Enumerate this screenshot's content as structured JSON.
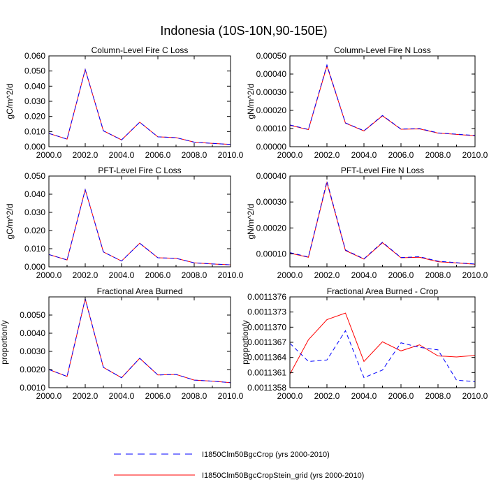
{
  "figure": {
    "title": "Indonesia (10S-10N,90-150E)"
  },
  "legend": [
    {
      "label": "I1850Clm50BgcCrop (yrs 2000-2010)",
      "color": "#0000ff",
      "style": "dashed"
    },
    {
      "label": "I1850Clm50BgcCropStein_grid (yrs 2000-2010)",
      "color": "#ff0000",
      "style": "solid"
    }
  ],
  "chart_data": [
    {
      "type": "line",
      "title": "Column-Level Fire C Loss",
      "xlabel": "",
      "ylabel": "gC/m^2/d",
      "x": [
        2000,
        2001,
        2002,
        2003,
        2004,
        2005,
        2006,
        2007,
        2008,
        2009,
        2010
      ],
      "xlim": [
        2000,
        2010
      ],
      "ylim": [
        0,
        0.06
      ],
      "xticks": [
        "2000.0",
        "2002.0",
        "2004.0",
        "2006.0",
        "2008.0",
        "2010.0"
      ],
      "xtick_values": [
        2000,
        2002,
        2004,
        2006,
        2008,
        2010
      ],
      "yticks": [
        "0.000",
        "0.010",
        "0.020",
        "0.030",
        "0.040",
        "0.050",
        "0.060"
      ],
      "ytick_values": [
        0,
        0.01,
        0.02,
        0.03,
        0.04,
        0.05,
        0.06
      ],
      "series": [
        {
          "values": [
            0.0088,
            0.005,
            0.051,
            0.0105,
            0.0045,
            0.0162,
            0.0065,
            0.006,
            0.003,
            0.0022,
            0.0015
          ],
          "color": "#ff0000",
          "style": "solid"
        },
        {
          "values": [
            0.0088,
            0.005,
            0.051,
            0.0105,
            0.0045,
            0.0162,
            0.0065,
            0.006,
            0.003,
            0.0022,
            0.0015
          ],
          "color": "#0000ff",
          "style": "dashed"
        }
      ]
    },
    {
      "type": "line",
      "title": "Column-Level Fire N Loss",
      "xlabel": "",
      "ylabel": "gN/m^2/d",
      "x": [
        2000,
        2001,
        2002,
        2003,
        2004,
        2005,
        2006,
        2007,
        2008,
        2009,
        2010
      ],
      "xlim": [
        2000,
        2010
      ],
      "ylim": [
        0,
        0.0005
      ],
      "xticks": [
        "2000.0",
        "2002.0",
        "2004.0",
        "2006.0",
        "2008.0",
        "2010.0"
      ],
      "xtick_values": [
        2000,
        2002,
        2004,
        2006,
        2008,
        2010
      ],
      "yticks": [
        "0.00000",
        "0.00010",
        "0.00020",
        "0.00030",
        "0.00040",
        "0.00050"
      ],
      "ytick_values": [
        0,
        0.0001,
        0.0002,
        0.0003,
        0.0004,
        0.0005
      ],
      "series": [
        {
          "values": [
            0.000118,
            9.4e-05,
            0.000445,
            0.00013,
            8.7e-05,
            0.00017,
            9.6e-05,
            9.8e-05,
            7.5e-05,
            6.8e-05,
            6e-05
          ],
          "color": "#ff0000",
          "style": "solid"
        },
        {
          "values": [
            0.00012,
            9.5e-05,
            0.00045,
            0.000131,
            8.8e-05,
            0.000172,
            9.7e-05,
            0.0001,
            7.6e-05,
            6.9e-05,
            6.2e-05
          ],
          "color": "#0000ff",
          "style": "dashed"
        }
      ]
    },
    {
      "type": "line",
      "title": "PFT-Level Fire C Loss",
      "xlabel": "",
      "ylabel": "gC/m^2/d",
      "x": [
        2000,
        2001,
        2002,
        2003,
        2004,
        2005,
        2006,
        2007,
        2008,
        2009,
        2010
      ],
      "xlim": [
        2000,
        2010
      ],
      "ylim": [
        0,
        0.05
      ],
      "xticks": [
        "2000.0",
        "2002.0",
        "2004.0",
        "2006.0",
        "2008.0",
        "2010.0"
      ],
      "xtick_values": [
        2000,
        2002,
        2004,
        2006,
        2008,
        2010
      ],
      "yticks": [
        "0.000",
        "0.010",
        "0.020",
        "0.030",
        "0.040",
        "0.050"
      ],
      "ytick_values": [
        0,
        0.01,
        0.02,
        0.03,
        0.04,
        0.05
      ],
      "series": [
        {
          "values": [
            0.0068,
            0.0038,
            0.0425,
            0.0082,
            0.0032,
            0.013,
            0.005,
            0.0047,
            0.0022,
            0.0016,
            0.0011
          ],
          "color": "#ff0000",
          "style": "solid"
        },
        {
          "values": [
            0.0068,
            0.0038,
            0.0425,
            0.0082,
            0.0032,
            0.013,
            0.005,
            0.0047,
            0.0022,
            0.0016,
            0.0011
          ],
          "color": "#0000ff",
          "style": "dashed"
        }
      ]
    },
    {
      "type": "line",
      "title": "PFT-Level Fire N Loss",
      "xlabel": "",
      "ylabel": "gN/m^2/d",
      "x": [
        2000,
        2001,
        2002,
        2003,
        2004,
        2005,
        2006,
        2007,
        2008,
        2009,
        2010
      ],
      "xlim": [
        2000,
        2010
      ],
      "ylim": [
        5e-05,
        0.0004
      ],
      "xticks": [
        "2000.0",
        "2002.0",
        "2004.0",
        "2006.0",
        "2008.0",
        "2010.0"
      ],
      "xtick_values": [
        2000,
        2002,
        2004,
        2006,
        2008,
        2010
      ],
      "yticks": [
        "0.00010",
        "0.00020",
        "0.00030",
        "0.00040"
      ],
      "ytick_values": [
        0.0001,
        0.0002,
        0.0003,
        0.0004
      ],
      "series": [
        {
          "values": [
            0.000103,
            8.7e-05,
            0.000375,
            0.000113,
            8e-05,
            0.000143,
            8.5e-05,
            8.7e-05,
            7e-05,
            6.5e-05,
            6e-05
          ],
          "color": "#ff0000",
          "style": "solid"
        },
        {
          "values": [
            0.000105,
            8.8e-05,
            0.00038,
            0.000115,
            8.1e-05,
            0.000145,
            8.6e-05,
            8.9e-05,
            7.2e-05,
            6.6e-05,
            6.1e-05
          ],
          "color": "#0000ff",
          "style": "dashed"
        }
      ]
    },
    {
      "type": "line",
      "title": "Fractional Area Burned",
      "xlabel": "",
      "ylabel": "proportion/y",
      "x": [
        2000,
        2001,
        2002,
        2003,
        2004,
        2005,
        2006,
        2007,
        2008,
        2009,
        2010
      ],
      "xlim": [
        2000,
        2010
      ],
      "ylim": [
        0.001,
        0.006
      ],
      "xticks": [
        "2000.0",
        "2002.0",
        "2004.0",
        "2006.0",
        "2008.0",
        "2010.0"
      ],
      "xtick_values": [
        2000,
        2002,
        2004,
        2006,
        2008,
        2010
      ],
      "yticks": [
        "0.0010",
        "0.0020",
        "0.0030",
        "0.0040",
        "0.0050"
      ],
      "ytick_values": [
        0.001,
        0.002,
        0.003,
        0.004,
        0.005
      ],
      "series": [
        {
          "values": [
            0.002,
            0.00162,
            0.00588,
            0.00212,
            0.00155,
            0.00262,
            0.0017,
            0.00173,
            0.00142,
            0.00136,
            0.00128
          ],
          "color": "#ff0000",
          "style": "solid"
        },
        {
          "values": [
            0.002,
            0.00162,
            0.0059,
            0.00212,
            0.00155,
            0.00262,
            0.0017,
            0.00173,
            0.00142,
            0.00136,
            0.00128
          ],
          "color": "#0000ff",
          "style": "dashed"
        }
      ]
    },
    {
      "type": "line",
      "title": "Fractional Area Burned - Crop",
      "xlabel": "",
      "ylabel": "proportion/y",
      "x": [
        2000,
        2001,
        2002,
        2003,
        2004,
        2005,
        2006,
        2007,
        2008,
        2009,
        2010
      ],
      "xlim": [
        2000,
        2010
      ],
      "ylim": [
        0.0011358,
        0.0011376
      ],
      "xticks": [
        "2000.0",
        "2002.0",
        "2004.0",
        "2006.0",
        "2008.0",
        "2010.0"
      ],
      "xtick_values": [
        2000,
        2002,
        2004,
        2006,
        2008,
        2010
      ],
      "yticks": [
        "0.0011358",
        "0.0011361",
        "0.0011364",
        "0.0011367",
        "0.0011370",
        "0.0011373",
        "0.0011376"
      ],
      "ytick_values": [
        0.0011358,
        0.0011361,
        0.0011364,
        0.0011367,
        0.001137,
        0.0011373,
        0.0011376
      ],
      "series": [
        {
          "values": [
            0.00113607,
            0.00113675,
            0.00113715,
            0.00113728,
            0.00113632,
            0.00113671,
            0.00113653,
            0.00113665,
            0.00113643,
            0.00113641,
            0.00113644
          ],
          "color": "#ff0000",
          "style": "solid"
        },
        {
          "values": [
            0.00113668,
            0.00113632,
            0.00113635,
            0.00113693,
            0.001136,
            0.00113615,
            0.00113669,
            0.0011366,
            0.00113655,
            0.00113595,
            0.00113592
          ],
          "color": "#0000ff",
          "style": "dashed"
        }
      ]
    }
  ]
}
